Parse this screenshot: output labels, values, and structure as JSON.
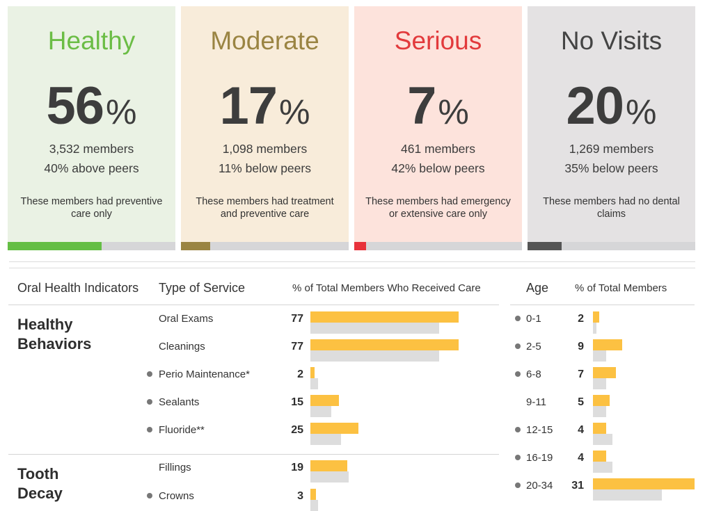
{
  "cards": [
    {
      "title": "Healthy",
      "percent": "56",
      "percent_symbol": "%",
      "members": "3,532 members",
      "peers": "40% above peers",
      "description": "These members had preventive care only",
      "bg": "#eaf2e4",
      "title_color": "#6bbd45",
      "bar_color": "#64be44",
      "bar_fill": 0.56
    },
    {
      "title": "Moderate",
      "percent": "17",
      "percent_symbol": "%",
      "members": "1,098 members",
      "peers": "11% below peers",
      "description": "These members had treatment and preventive care",
      "bg": "#f8ecda",
      "title_color": "#9a8442",
      "bar_color": "#9a8442",
      "bar_fill": 0.17
    },
    {
      "title": "Serious",
      "percent": "7",
      "percent_symbol": "%",
      "members": "461 members",
      "peers": "42% below peers",
      "description": "These members had emergency or extensive care only",
      "bg": "#fde3dc",
      "title_color": "#e23a3c",
      "bar_color": "#e8323a",
      "bar_fill": 0.07
    },
    {
      "title": "No Visits",
      "percent": "20",
      "percent_symbol": "%",
      "members": "1,269 members",
      "peers": "35% below peers",
      "description": "These members had no dental claims",
      "bg": "#e4e2e3",
      "title_color": "#444444",
      "bar_color": "#555555",
      "bar_fill": 0.2
    }
  ],
  "table": {
    "headers": {
      "indicators": "Oral Health Indicators",
      "service": "Type of Service",
      "pct_received": "% of Total Members Who Received Care",
      "age": "Age",
      "pct_total": "% of Total Members"
    },
    "groups": [
      {
        "title": "Healthy\nBehaviors"
      },
      {
        "title": "Tooth\nDecay"
      }
    ],
    "services": [
      {
        "label": "Oral Exams",
        "value": "77",
        "member": 77,
        "peer": 67,
        "dot": false
      },
      {
        "label": "Cleanings",
        "value": "77",
        "member": 77,
        "peer": 67,
        "dot": false
      },
      {
        "label": "Perio Maintenance*",
        "value": "2",
        "member": 2,
        "peer": 4,
        "dot": true
      },
      {
        "label": "Sealants",
        "value": "15",
        "member": 15,
        "peer": 11,
        "dot": true
      },
      {
        "label": "Fluoride**",
        "value": "25",
        "member": 25,
        "peer": 16,
        "dot": true
      },
      {
        "label": "Fillings",
        "value": "19",
        "member": 19,
        "peer": 20,
        "dot": false
      },
      {
        "label": "Crowns",
        "value": "3",
        "member": 3,
        "peer": 4,
        "dot": true
      }
    ],
    "ages": [
      {
        "label": "0-1",
        "value": "2",
        "member": 2,
        "peer": 1,
        "dot": true
      },
      {
        "label": "2-5",
        "value": "9",
        "member": 9,
        "peer": 4,
        "dot": true
      },
      {
        "label": "6-8",
        "value": "7",
        "member": 7,
        "peer": 4,
        "dot": true
      },
      {
        "label": "9-11",
        "value": "5",
        "member": 5,
        "peer": 4,
        "dot": false
      },
      {
        "label": "12-15",
        "value": "4",
        "member": 4,
        "peer": 6,
        "dot": true
      },
      {
        "label": "16-19",
        "value": "4",
        "member": 4,
        "peer": 6,
        "dot": true
      },
      {
        "label": "20-34",
        "value": "31",
        "member": 31,
        "peer": 21,
        "dot": true
      }
    ],
    "colors": {
      "member_bar": "#fcc142",
      "peer_bar": "#dddddd",
      "dot": "#777777"
    }
  }
}
